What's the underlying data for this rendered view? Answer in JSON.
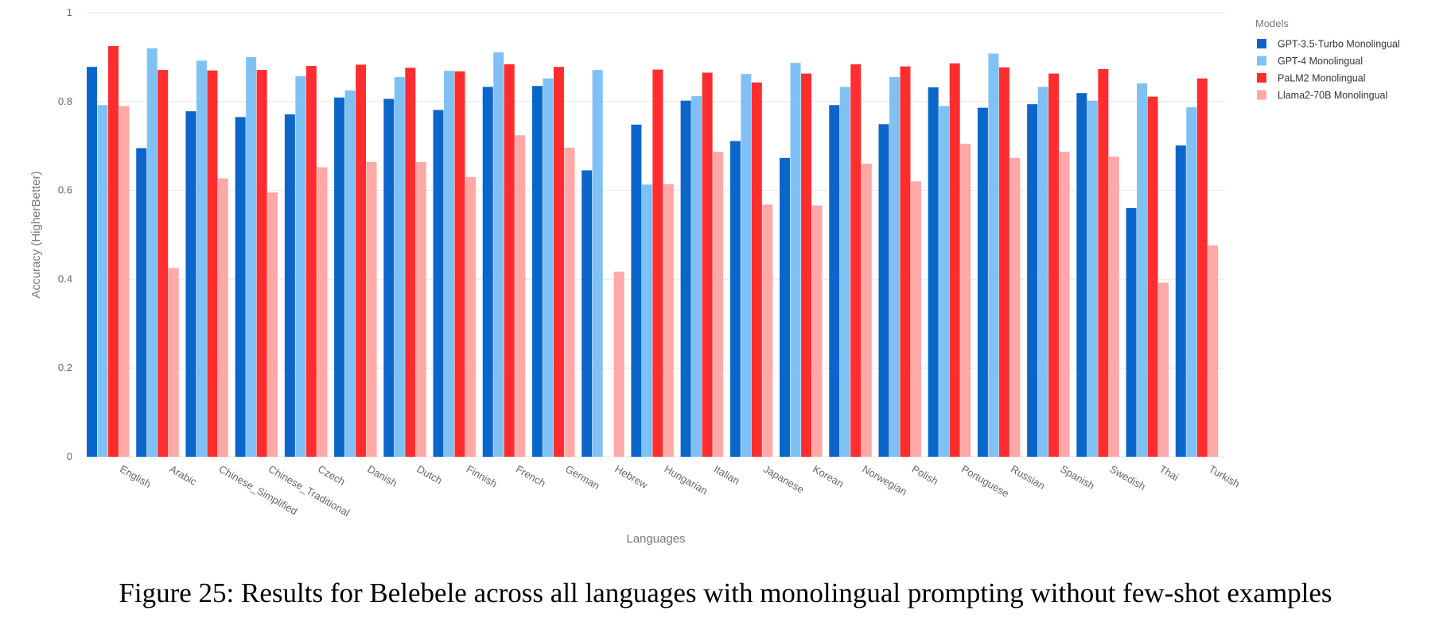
{
  "caption": "Figure 25: Results for Belebele across all languages with monolingual prompting without few-shot examples",
  "chart_data": {
    "type": "bar",
    "xlabel": "Languages",
    "ylabel": "Accuracy (HigherBetter)",
    "ylim": [
      0,
      1
    ],
    "yticks": [
      "0",
      "0.2",
      "0.4",
      "0.6",
      "0.8",
      "1"
    ],
    "grid": true,
    "legend_title": "Models",
    "legend_position": "top-right",
    "categories": [
      "English",
      "Arabic",
      "Chinese_Simplified",
      "Chinese_Traditional",
      "Czech",
      "Danish",
      "Dutch",
      "Finnish",
      "French",
      "German",
      "Hebrew",
      "Hungarian",
      "Italian",
      "Japanese",
      "Korean",
      "Norwegian",
      "Polish",
      "Portuguese",
      "Russian",
      "Spanish",
      "Swedish",
      "Thai",
      "Turkish"
    ],
    "series": [
      {
        "name": "GPT-3.5-Turbo Monolingual",
        "color": "#0b66c9",
        "values": [
          0.878,
          0.695,
          0.778,
          0.765,
          0.771,
          0.809,
          0.806,
          0.781,
          0.833,
          0.835,
          0.645,
          0.748,
          0.802,
          0.711,
          0.673,
          0.792,
          0.749,
          0.832,
          0.786,
          0.794,
          0.819,
          0.56,
          0.701
        ]
      },
      {
        "name": "GPT-4 Monolingual",
        "color": "#7fc1f5",
        "values": [
          0.792,
          0.92,
          0.892,
          0.9,
          0.857,
          0.825,
          0.855,
          0.869,
          0.911,
          0.852,
          0.871,
          0.613,
          0.812,
          0.862,
          0.887,
          0.833,
          0.855,
          0.79,
          0.908,
          0.833,
          0.802,
          0.841,
          0.787
        ]
      },
      {
        "name": "PaLM2 Monolingual",
        "color": "#ff2d2d",
        "values": [
          0.925,
          0.871,
          0.87,
          0.871,
          0.88,
          0.883,
          0.876,
          0.868,
          0.884,
          0.878,
          null,
          0.872,
          0.865,
          0.843,
          0.863,
          0.884,
          0.879,
          0.886,
          0.877,
          0.863,
          0.873,
          0.811,
          0.852
        ]
      },
      {
        "name": "Llama2-70B Monolingual",
        "color": "#ffa8a8",
        "values": [
          0.79,
          0.425,
          0.627,
          0.595,
          0.652,
          0.664,
          0.664,
          0.63,
          0.724,
          0.696,
          0.417,
          0.614,
          0.687,
          0.568,
          0.566,
          0.66,
          0.62,
          0.705,
          0.673,
          0.687,
          0.676,
          0.392,
          0.476
        ]
      }
    ]
  }
}
